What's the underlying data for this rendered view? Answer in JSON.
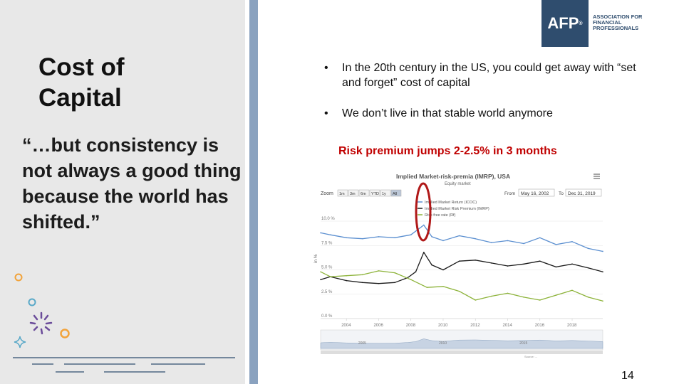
{
  "slide": {
    "title_line1": "Cost of",
    "title_line2": "Capital",
    "quote": "“…but consistency is not always a good thing because the world has shifted.”",
    "bullets": [
      "In the 20th century in the US, you could get away with “set and forget” cost of capital",
      "We don’t live in that stable world anymore"
    ],
    "bullet_symbol": "•",
    "highlight": "Risk premium jumps 2-2.5% in 3 months",
    "page_number": "14"
  },
  "logo": {
    "mark": "AFP",
    "registered": "®",
    "text_line1": "ASSOCIATION FOR",
    "text_line2": "FINANCIAL",
    "text_line3": "PROFESSIONALS"
  },
  "colors": {
    "highlight": "#c00000",
    "accent_blue": "#8aa2bf",
    "logo_navy": "#2f4d6e",
    "series_coc": "#5b8fd0",
    "series_imrp": "#1a1a1a",
    "series_rf": "#8db33a",
    "deco_orange": "#f2a33a",
    "deco_purple": "#6b4c9a",
    "deco_teal": "#5aa9c8"
  },
  "chart_data": {
    "type": "line",
    "title": "Implied Market-risk-premia (IMRP), USA",
    "subtitle": "Equity market",
    "zoom_label": "Zoom",
    "zoom_buttons": [
      "1m",
      "3m",
      "6m",
      "YTD",
      "1y",
      "All"
    ],
    "from_label": "From",
    "from_date": "May 16, 2002",
    "to_label": "To",
    "to_date": "Dec 31, 2019",
    "ylabel": "in %",
    "y_ticks": [
      "10.0 %",
      "7.5 %",
      "5.0 %",
      "2.5 %",
      "0.0 %"
    ],
    "ylim": [
      0,
      10
    ],
    "x_ticks": [
      "2004",
      "2006",
      "2008",
      "2010",
      "2012",
      "2014",
      "2016",
      "2018"
    ],
    "navigator_ticks": [
      "2005",
      "2010",
      "2015"
    ],
    "legend": [
      "Implied Market Return (ICOC)",
      "Implied Market Risk Premium (IMRP)",
      "Risk free rate (Rf)"
    ],
    "source": "Source: ...",
    "series": [
      {
        "name": "Implied Market Return (ICOC)",
        "x": [
          2002.4,
          2003,
          2004,
          2005,
          2006,
          2007,
          2008,
          2008.8,
          2009.3,
          2010,
          2011,
          2012,
          2013,
          2014,
          2015,
          2016,
          2017,
          2018,
          2019,
          2019.9
        ],
        "values": [
          8.8,
          8.6,
          8.3,
          8.2,
          8.4,
          8.3,
          8.6,
          9.6,
          8.4,
          8.0,
          8.5,
          8.2,
          7.8,
          8.0,
          7.7,
          8.3,
          7.6,
          7.9,
          7.2,
          6.9
        ]
      },
      {
        "name": "Implied Market Risk Premium (IMRP)",
        "x": [
          2002.4,
          2003,
          2004,
          2005,
          2006,
          2007,
          2007.8,
          2008.3,
          2008.8,
          2009.3,
          2010,
          2011,
          2012,
          2013,
          2014,
          2015,
          2016,
          2017,
          2018,
          2019,
          2019.9
        ],
        "values": [
          4.0,
          4.3,
          3.9,
          3.7,
          3.6,
          3.7,
          4.2,
          4.8,
          6.8,
          5.5,
          5.0,
          5.9,
          6.0,
          5.7,
          5.4,
          5.6,
          5.9,
          5.3,
          5.6,
          5.2,
          4.8
        ]
      },
      {
        "name": "Risk free rate (Rf)",
        "x": [
          2002.4,
          2003,
          2004,
          2005,
          2006,
          2007,
          2008,
          2009,
          2010,
          2011,
          2012,
          2013,
          2014,
          2015,
          2016,
          2017,
          2018,
          2019,
          2019.9
        ],
        "values": [
          4.8,
          4.3,
          4.4,
          4.5,
          4.9,
          4.7,
          4.0,
          3.2,
          3.3,
          2.8,
          1.9,
          2.3,
          2.6,
          2.2,
          1.9,
          2.4,
          2.9,
          2.2,
          1.8
        ]
      }
    ]
  }
}
